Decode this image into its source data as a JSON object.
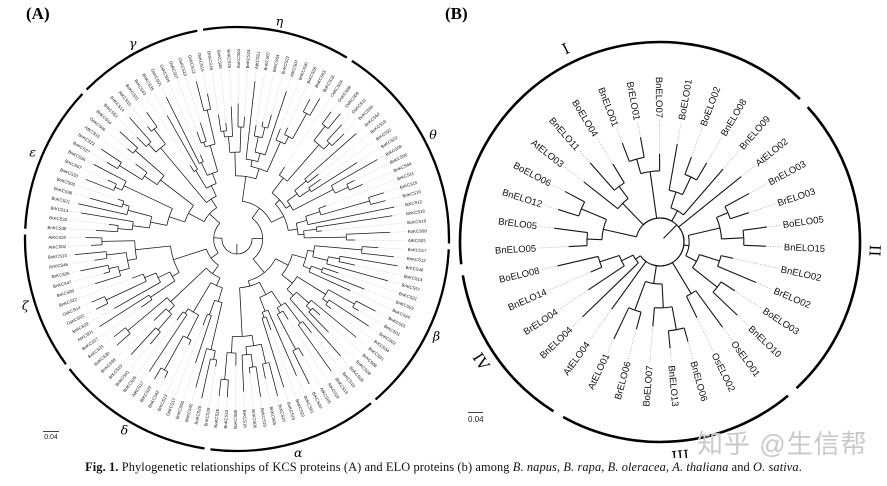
{
  "figure": {
    "panelA": {
      "letter": "(A)",
      "scale_bar": "0.04",
      "clades": [
        {
          "label": "η",
          "leaves": [
            "BnKCS16",
            "BoKCS45",
            "BnKCS25",
            "BoKCS04",
            "BnKCS24",
            "AtKCS21",
            "BnKCS07",
            "BrKCS04",
            "BoKCS22",
            "AtKCS07",
            "BnKCS30",
            "BrKCS28",
            "BnKCS63",
            "BoKCS16"
          ]
        },
        {
          "label": "θ",
          "leaves": [
            "OsKCS04",
            "OsKCS08",
            "OsKCS09",
            "OsKCS11",
            "BnKCS56",
            "BnKCS62",
            "BnKCS19",
            "BrKCS32",
            "BnKCS52",
            "BrKCS09",
            "BnKCS50",
            "BnKCS44",
            "BrKCS11",
            "BrKCS15",
            "BnKCS10",
            "AtKCS12",
            "BnKCS18",
            "BoKCS18",
            "BoKCS09",
            "AtKCS03"
          ]
        },
        {
          "label": "β",
          "leaves": [
            "BnKCS17",
            "BnKCS12",
            "BrKCS48",
            "BoKCS14",
            "BnKCS57",
            "BnKCS21",
            "BnKCS53",
            "BoKCS24",
            "BnKCS01",
            "BrKCS01",
            "BnKCS02",
            "BrKCS34",
            "BoKCS01",
            "BrKCS08",
            "BnKCS08",
            "BnKCS09"
          ]
        },
        {
          "label": "α",
          "leaves": [
            "BrKCS10",
            "BnKCS13",
            "AtKCS18",
            "AtKCS05",
            "BrKCS03",
            "BnKCS51",
            "BnKCS20",
            "BoKCS15",
            "BrKCS20",
            "BnKCS05",
            "BoKCS19",
            "BnKCS06",
            "BrKCS18",
            "BoKCS06",
            "BnKCS15",
            "BoKCS26"
          ]
        },
        {
          "label": "δ",
          "leaves": [
            "BnKCS29",
            "BoKCS29",
            "BnKCS45",
            "BnKCS58",
            "OsKCS17",
            "BrKCS13",
            "BnKCS42",
            "BrKCS23",
            "AtKCS17",
            "BnKCS26",
            "BnKCS41",
            "BrKCS19",
            "BnKCS39",
            "BoKCS30",
            "BnKCS31"
          ]
        },
        {
          "label": "ζ",
          "leaves": [
            "BnKCS27",
            "AtKCS01",
            "BrKCS29",
            "OsKCS02",
            "OsKCS14",
            "BnKCS22",
            "BrKCS30",
            "BnKCS47",
            "BrKCS26",
            "BnKCS46",
            "BoKCS13",
            "AtKCS02",
            "AtKCS20"
          ]
        },
        {
          "label": "ε",
          "leaves": [
            "BnKCS38",
            "BrKCS33",
            "BrKCS14",
            "BoKCS21",
            "BnKCS36",
            "BoKCS03",
            "BnKCS33",
            "BrKCS07",
            "BnKCS34",
            "BoKCS27",
            "BnKCS23",
            "AtKCS15",
            "OsKCS06",
            "BnKCS54"
          ]
        },
        {
          "label": "γ",
          "leaves": [
            "BrKCS52",
            "BnKCS14",
            "AtKCS10",
            "BoKCS23",
            "BrKCS43",
            "BnKCS35",
            "OsKCS01",
            "OsKCS05",
            "OsKCS07",
            "OsKCS10",
            "OsKCS13",
            "OsKCS15"
          ]
        }
      ]
    },
    "panelB": {
      "letter": "(B)",
      "scale_bar": "0.04",
      "clades": [
        {
          "label": "I",
          "leaf_count": 14
        },
        {
          "label": "II",
          "leaf_count": 9
        },
        {
          "label": "III",
          "leaf_count": 7
        },
        {
          "label": "IV",
          "leaf_count": 5
        }
      ],
      "tree": [
        [
          [
            [
              "BnELO05",
              "BrELO05"
            ],
            [
              "BnELO12",
              "BoELO06"
            ]
          ],
          [
            [
              "AtELO03",
              [
                "BnELO11",
                "BoELO04"
              ]
            ],
            [
              [
                [
                  "BnELO01",
                  "BrELO01"
                ],
                "BnELO07"
              ],
              [
                [
                  "BoELO01",
                  [
                    "BoELO02",
                    "BnELO08"
                  ]
                ],
                "BnELO09"
              ]
            ]
          ]
        ],
        [
          [
            "AtELO02",
            [
              [
                [
                  "BnELO03",
                  "BrELO03"
                ],
                [
                  "BoELO05",
                  "BnELO15"
                ]
              ],
              [
                [
                  "BnELO02",
                  "BrELO02"
                ],
                [
                  "BoELO03",
                  "BnELO10"
                ]
              ]
            ]
          ],
          [
            [
              [
                "OsELO01",
                "OsELO02"
              ],
              [
                [
                  [
                    "BnELO06",
                    "BnELO13"
                  ],
                  "BoELO07"
                ],
                [
                  "BrELO06",
                  "AtELO01"
                ]
              ]
            ],
            [
              "AtELO04",
              [
                "BnELO04",
                [
                  "BrELO04",
                  [
                    "BnELO14",
                    "BoELO08"
                  ]
                ]
              ]
            ]
          ]
        ]
      ]
    },
    "caption": {
      "segments": [
        {
          "text": "Fig. 1.",
          "bold": true
        },
        {
          "text": " Phylogenetic relationships of KCS proteins (A) and ELO proteins (b) among "
        },
        {
          "text": "B. napus",
          "italic": true
        },
        {
          "text": ", "
        },
        {
          "text": "B. rapa",
          "italic": true
        },
        {
          "text": ", "
        },
        {
          "text": "B. oleracea",
          "italic": true
        },
        {
          "text": ", "
        },
        {
          "text": "A. thaliana",
          "italic": true
        },
        {
          "text": " and "
        },
        {
          "text": "O. sativa",
          "italic": true
        },
        {
          "text": "."
        }
      ]
    },
    "watermark": "知乎 @生信帮"
  }
}
